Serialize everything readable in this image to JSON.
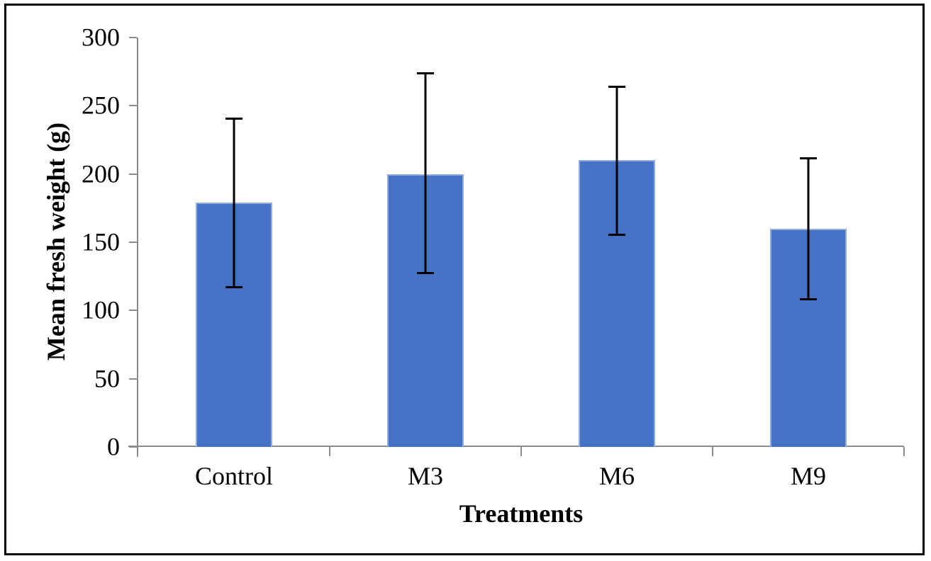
{
  "chart_data": {
    "type": "bar",
    "title": "",
    "xlabel": "Treatments",
    "ylabel": "Mean fresh weight (g)",
    "categories": [
      "Control",
      "M3",
      "M6",
      "M9"
    ],
    "values": [
      179,
      200,
      210,
      160
    ],
    "error_upper": [
      241,
      274,
      264,
      212
    ],
    "error_lower": [
      117,
      127,
      155,
      108
    ],
    "ylim": [
      0,
      300
    ],
    "ytick_step": 50,
    "yticks": [
      0,
      50,
      100,
      150,
      200,
      250,
      300
    ],
    "grid": false,
    "legend": false,
    "bar_color": "#4472C4",
    "bar_edge_color": "#8FAADC",
    "errorbar_color": "#000000",
    "axis_color": "#8C8C8C",
    "frame_border_color": "#000000"
  }
}
